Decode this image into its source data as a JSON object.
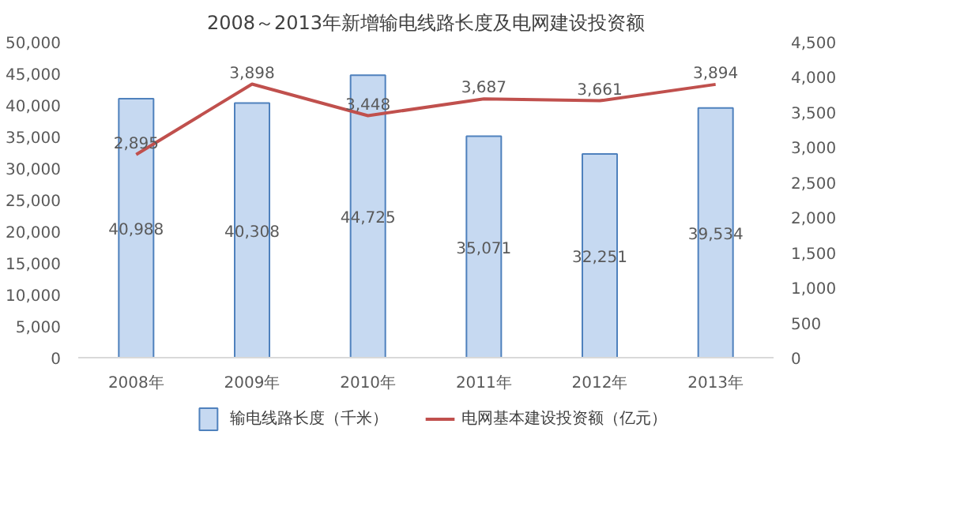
{
  "chart_data": {
    "type": "bar",
    "title": "2008～2013年新增输电线路长度及电网建设投资额",
    "categories": [
      "2008年",
      "2009年",
      "2010年",
      "2011年",
      "2012年",
      "2013年"
    ],
    "series": [
      {
        "name": "输电线路长度（千米）",
        "color": "#c6d9f1",
        "values": [
          40988,
          40308,
          44725,
          35071,
          32251,
          39534
        ],
        "value_labels": [
          "40,988",
          "40,308",
          "44,725",
          "35,071",
          "32,251",
          "39,534"
        ]
      },
      {
        "name": "电网基本建设投资额（亿元）",
        "type": "line",
        "color": "#c0504d",
        "axis": "y2",
        "values": [
          2895,
          3898,
          3448,
          3687,
          3661,
          3894
        ],
        "value_labels": [
          "2,895",
          "3,898",
          "3,448",
          "3,687",
          "3,661",
          "3,894"
        ]
      }
    ],
    "ylim": [
      0,
      50000
    ],
    "yticks": [
      0,
      {
        "value": 5000,
        "label": "5,000"
      },
      {
        "value": 10000,
        "label": "10,000"
      },
      {
        "value": 15000,
        "label": "15,000"
      },
      {
        "value": 20000,
        "label": "20,000"
      },
      {
        "value": 25000,
        "label": "25,000"
      },
      {
        "value": 30000,
        "label": "30,000"
      },
      {
        "value": 35000,
        "label": "35,000"
      },
      {
        "value": 40000,
        "label": "40,000"
      },
      {
        "value": 45000,
        "label": "45,000"
      },
      {
        "value": 50000,
        "label": "50,000"
      }
    ],
    "y2lim": [
      0,
      4500
    ],
    "y2ticks": [
      0,
      500,
      {
        "value": 1000,
        "label": "1,000"
      },
      {
        "value": 1500,
        "label": "1,500"
      },
      {
        "value": 2000,
        "label": "2,000"
      },
      {
        "value": 2500,
        "label": "2,500"
      },
      {
        "value": 3000,
        "label": "3,000"
      },
      {
        "value": 3500,
        "label": "3,500"
      },
      {
        "value": 4000,
        "label": "4,000"
      },
      {
        "value": 4500,
        "label": "4,500"
      }
    ],
    "legend": "bottom"
  }
}
